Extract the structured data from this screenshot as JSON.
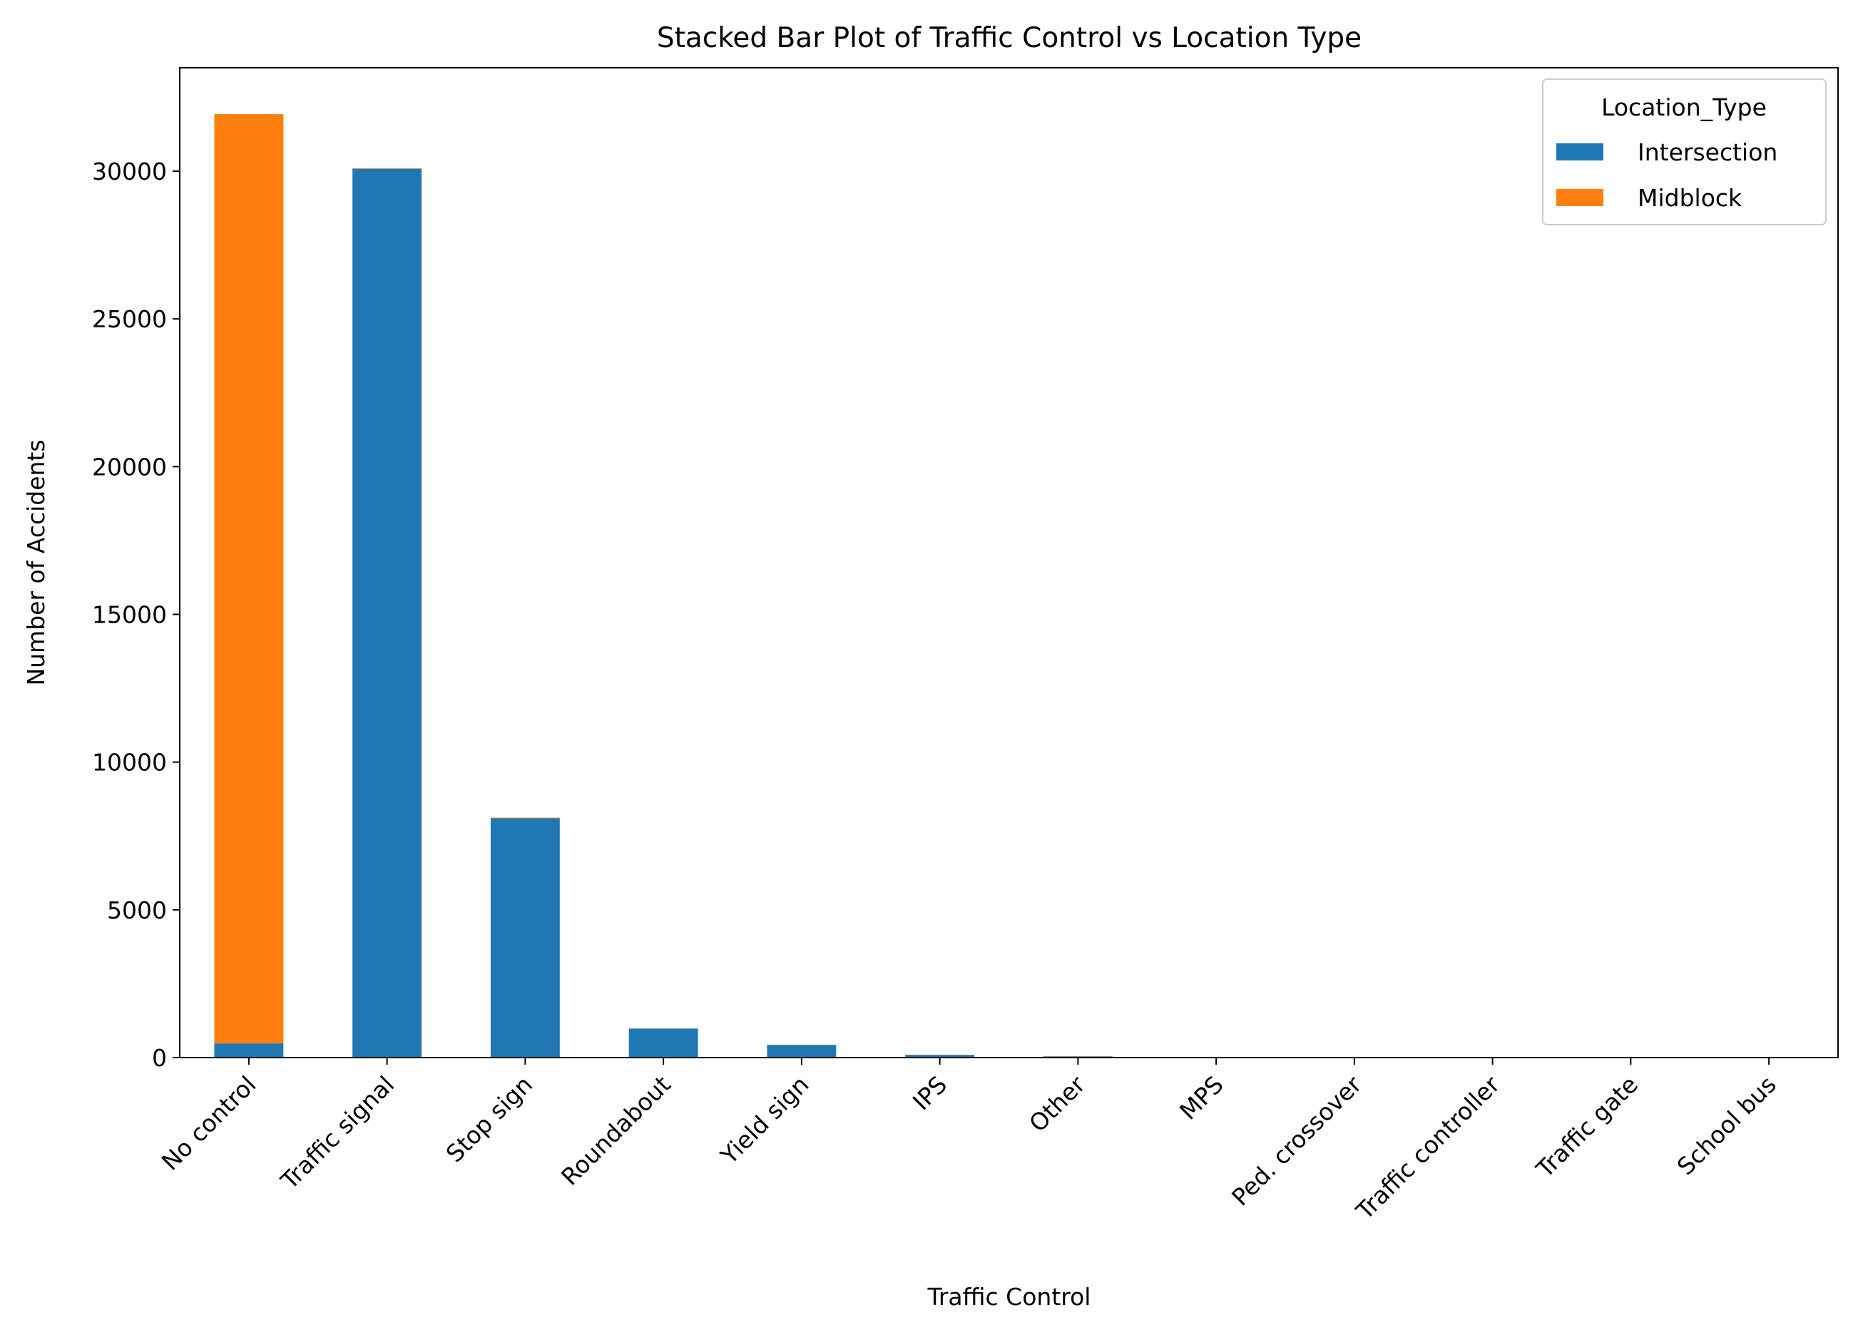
{
  "chart_data": {
    "type": "bar",
    "stacked": true,
    "title": "Stacked Bar Plot of Traffic Control vs Location Type",
    "xlabel": "Traffic Control",
    "ylabel": "Number of Accidents",
    "categories": [
      "No control",
      "Traffic signal",
      "Stop sign",
      "Roundabout",
      "Yield sign",
      "IPS",
      "Other",
      "MPS",
      "Ped. crossover",
      "Traffic controller",
      "Traffic gate",
      "School bus"
    ],
    "series": [
      {
        "name": "Intersection",
        "color": "#1f77b4",
        "values": [
          480,
          30080,
          8100,
          980,
          430,
          90,
          40,
          15,
          10,
          5,
          3,
          1
        ]
      },
      {
        "name": "Midblock",
        "color": "#ff7f0e",
        "values": [
          31450,
          20,
          20,
          5,
          5,
          5,
          5,
          0,
          0,
          0,
          0,
          0
        ]
      }
    ],
    "ylim": [
      0,
      33500
    ],
    "yticks": [
      0,
      5000,
      10000,
      15000,
      20000,
      25000,
      30000
    ],
    "grid": false,
    "legend": {
      "title": "Location_Type",
      "position": "upper right"
    }
  }
}
